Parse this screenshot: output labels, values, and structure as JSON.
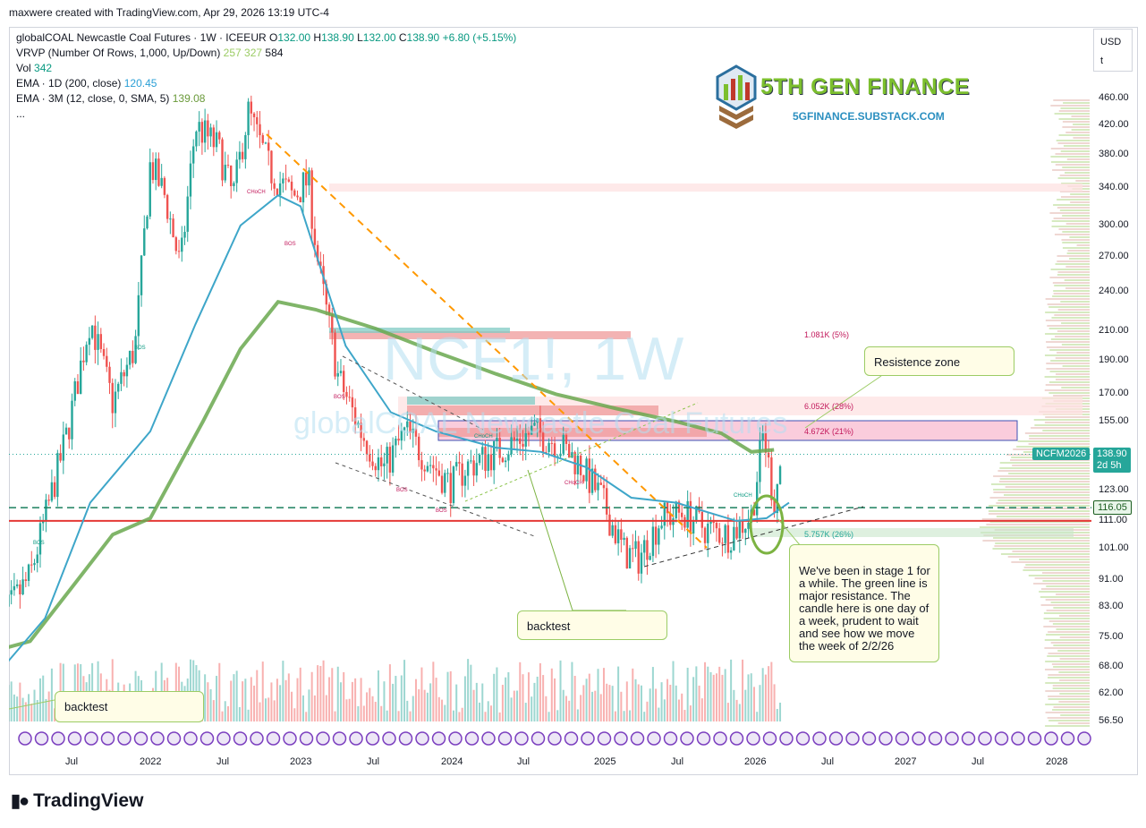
{
  "header": {
    "created_by": "maxwere created with TradingView.com, Apr 29, 2026 13:19 UTC-4"
  },
  "legend": {
    "symbol_line": "globalCOAL Newcastle Coal Futures · 1W · ICEEUR",
    "ohlc": {
      "o_label": "O",
      "o": "132.00",
      "h_label": "H",
      "h": "138.90",
      "l_label": "L",
      "l": "132.00",
      "c_label": "C",
      "c": "138.90",
      "change": "+6.80 (+5.15%)"
    },
    "vrvp": {
      "label": "VRVP (Number Of Rows, 1,000, Up/Down)",
      "v1": "257",
      "v2": "327",
      "v3": "584"
    },
    "vol": {
      "label": "Vol",
      "value": "342"
    },
    "ema_1d": {
      "label": "EMA · 1D (200, close)",
      "value": "120.45"
    },
    "ema_3m": {
      "label": "EMA · 3M (12, close, 0, SMA, 5)",
      "value": "139.08"
    },
    "more": "..."
  },
  "currency_box": {
    "currency": "USD",
    "scale": "t"
  },
  "brand": {
    "title": "5TH GEN FINANCE",
    "subtitle": "5GFINANCE.SUBSTACK.COM"
  },
  "watermark": {
    "symbol": "NCF1!, 1W",
    "name": "globalCOAL Newcastle Coal Futures"
  },
  "callouts": {
    "resistance": "Resistence zone",
    "backtest_main": "backtest",
    "backtest_small": "backtest",
    "note": "We've been in stage 1 for a while.  The green line is major resistance.  The candle here is one day of a week, prudent to wait and see how we move the week of 2/2/26"
  },
  "zone_labels": {
    "z1": "1.081K (5%)",
    "z2": "6.052K (28%)",
    "z3": "4.672K (21%)",
    "z4": "5.757K (26%)"
  },
  "markers": {
    "choch": "CHoCH",
    "bos": "BOS"
  },
  "price_tags": {
    "symbol_tag": "NCFM2026",
    "last_price": "138.90",
    "countdown": "2d 5h",
    "ema_price": "116.05"
  },
  "footer": {
    "logo": "TradingView"
  },
  "colors": {
    "up": "#26a69a",
    "down": "#ef5350",
    "ema_fast": "#3ea6c9",
    "ema_slow": "#6aa84f",
    "support_line": "#e53935"
  },
  "chart_data": {
    "type": "candlestick",
    "title": "globalCOAL Newcastle Coal Futures",
    "yaxis": {
      "scale": "log",
      "ticks": [
        "460.00",
        "420.00",
        "380.00",
        "340.00",
        "300.00",
        "270.00",
        "240.00",
        "210.00",
        "190.00",
        "170.00",
        "155.00",
        "123.00",
        "111.00",
        "101.00",
        "91.00",
        "83.00",
        "75.00",
        "68.00",
        "62.00",
        "56.50"
      ]
    },
    "xaxis": {
      "ticks": [
        "Jul",
        "2022",
        "Jul",
        "2023",
        "Jul",
        "2024",
        "Jul",
        "2025",
        "Jul",
        "2026",
        "Jul",
        "2027",
        "Jul",
        "2028"
      ]
    },
    "ylim": [
      53,
      490
    ],
    "horizontal_lines": [
      {
        "name": "support",
        "value": 111.0
      },
      {
        "name": "ema_level",
        "value": 116.05
      },
      {
        "name": "last",
        "value": 138.9
      }
    ],
    "ema_slow_path": [
      [
        2021.0,
        72
      ],
      [
        2021.2,
        74
      ],
      [
        2021.5,
        90
      ],
      [
        2021.75,
        106
      ],
      [
        2022.0,
        112
      ],
      [
        2022.35,
        155
      ],
      [
        2022.6,
        198
      ],
      [
        2022.85,
        232
      ],
      [
        2023.1,
        226
      ],
      [
        2023.5,
        212
      ],
      [
        2023.9,
        196
      ],
      [
        2024.3,
        182
      ],
      [
        2024.7,
        170
      ],
      [
        2025.1,
        162
      ],
      [
        2025.5,
        155
      ],
      [
        2025.8,
        149
      ],
      [
        2026.0,
        140
      ],
      [
        2026.15,
        141
      ]
    ],
    "ema_fast_path": [
      [
        2021.0,
        67
      ],
      [
        2021.3,
        80
      ],
      [
        2021.6,
        118
      ],
      [
        2022.0,
        150
      ],
      [
        2022.3,
        215
      ],
      [
        2022.6,
        300
      ],
      [
        2022.85,
        332
      ],
      [
        2023.0,
        320
      ],
      [
        2023.3,
        200
      ],
      [
        2023.6,
        160
      ],
      [
        2023.9,
        150
      ],
      [
        2024.3,
        142
      ],
      [
        2024.6,
        140
      ],
      [
        2024.9,
        133
      ],
      [
        2025.2,
        120
      ],
      [
        2025.5,
        118
      ],
      [
        2025.9,
        111
      ],
      [
        2026.1,
        112
      ],
      [
        2026.25,
        118
      ]
    ]
  }
}
